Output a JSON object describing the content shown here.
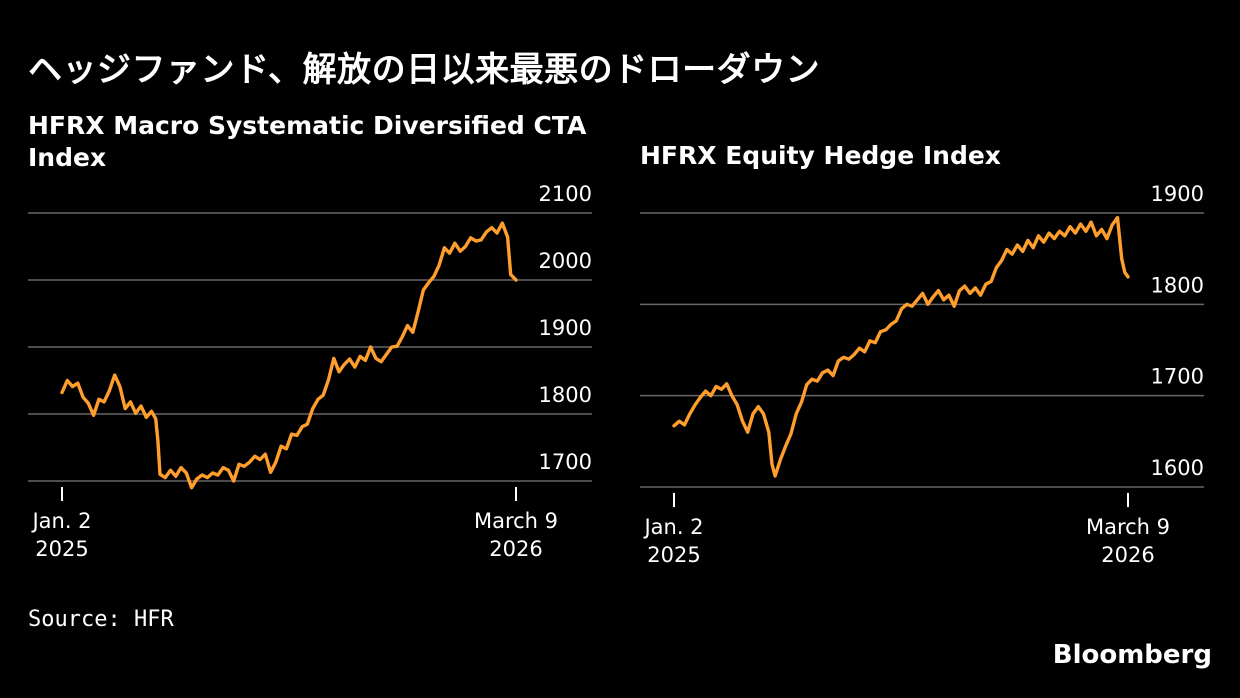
{
  "headline": "ヘッジファンド、解放の日以来最悪のドローダウン",
  "source": "Source: HFR",
  "brand": "Bloomberg",
  "chart_data": [
    {
      "type": "line",
      "title": "HFRX Macro Systematic Diversified CTA Index",
      "line_color": "#ff9e2c",
      "grid": true,
      "ylim": [
        1680,
        2100
      ],
      "y_ticks": [
        1700,
        1800,
        1900,
        2000,
        2100
      ],
      "x_tick_labels": [
        {
          "line1": "Jan. 2",
          "line2": "2025"
        },
        {
          "line1": "March 9",
          "line2": "2026"
        }
      ],
      "x_range": [
        "2025-01-02",
        "2026-03-09"
      ],
      "points": [
        [
          "2025-01-02",
          1832
        ],
        [
          "2025-01-07",
          1850
        ],
        [
          "2025-01-12",
          1841
        ],
        [
          "2025-01-17",
          1846
        ],
        [
          "2025-01-22",
          1825
        ],
        [
          "2025-01-27",
          1816
        ],
        [
          "2025-02-01",
          1798
        ],
        [
          "2025-02-06",
          1822
        ],
        [
          "2025-02-11",
          1818
        ],
        [
          "2025-02-16",
          1835
        ],
        [
          "2025-02-21",
          1858
        ],
        [
          "2025-02-26",
          1841
        ],
        [
          "2025-03-03",
          1808
        ],
        [
          "2025-03-08",
          1818
        ],
        [
          "2025-03-13",
          1801
        ],
        [
          "2025-03-18",
          1812
        ],
        [
          "2025-03-23",
          1795
        ],
        [
          "2025-03-28",
          1804
        ],
        [
          "2025-04-01",
          1793
        ],
        [
          "2025-04-03",
          1760
        ],
        [
          "2025-04-05",
          1710
        ],
        [
          "2025-04-10",
          1705
        ],
        [
          "2025-04-15",
          1716
        ],
        [
          "2025-04-20",
          1707
        ],
        [
          "2025-04-25",
          1720
        ],
        [
          "2025-04-30",
          1712
        ],
        [
          "2025-05-05",
          1690
        ],
        [
          "2025-05-10",
          1703
        ],
        [
          "2025-05-15",
          1709
        ],
        [
          "2025-05-20",
          1705
        ],
        [
          "2025-05-25",
          1712
        ],
        [
          "2025-05-30",
          1709
        ],
        [
          "2025-06-04",
          1720
        ],
        [
          "2025-06-09",
          1716
        ],
        [
          "2025-06-14",
          1700
        ],
        [
          "2025-06-19",
          1725
        ],
        [
          "2025-06-24",
          1722
        ],
        [
          "2025-06-29",
          1728
        ],
        [
          "2025-07-04",
          1737
        ],
        [
          "2025-07-09",
          1732
        ],
        [
          "2025-07-14",
          1740
        ],
        [
          "2025-07-19",
          1713
        ],
        [
          "2025-07-24",
          1728
        ],
        [
          "2025-07-29",
          1752
        ],
        [
          "2025-08-03",
          1748
        ],
        [
          "2025-08-08",
          1770
        ],
        [
          "2025-08-13",
          1768
        ],
        [
          "2025-08-18",
          1781
        ],
        [
          "2025-08-23",
          1785
        ],
        [
          "2025-08-28",
          1808
        ],
        [
          "2025-09-02",
          1822
        ],
        [
          "2025-09-07",
          1828
        ],
        [
          "2025-09-12",
          1851
        ],
        [
          "2025-09-17",
          1883
        ],
        [
          "2025-09-22",
          1863
        ],
        [
          "2025-09-27",
          1874
        ],
        [
          "2025-10-02",
          1882
        ],
        [
          "2025-10-07",
          1870
        ],
        [
          "2025-10-12",
          1886
        ],
        [
          "2025-10-17",
          1880
        ],
        [
          "2025-10-22",
          1900
        ],
        [
          "2025-10-27",
          1883
        ],
        [
          "2025-11-01",
          1878
        ],
        [
          "2025-11-06",
          1889
        ],
        [
          "2025-11-11",
          1900
        ],
        [
          "2025-11-16",
          1901
        ],
        [
          "2025-11-21",
          1915
        ],
        [
          "2025-11-26",
          1932
        ],
        [
          "2025-12-01",
          1922
        ],
        [
          "2025-12-06",
          1952
        ],
        [
          "2025-12-11",
          1985
        ],
        [
          "2025-12-16",
          1996
        ],
        [
          "2025-12-21",
          2005
        ],
        [
          "2025-12-26",
          2022
        ],
        [
          "2025-12-31",
          2048
        ],
        [
          "2026-01-05",
          2040
        ],
        [
          "2026-01-10",
          2055
        ],
        [
          "2026-01-15",
          2043
        ],
        [
          "2026-01-20",
          2050
        ],
        [
          "2026-01-25",
          2063
        ],
        [
          "2026-01-30",
          2058
        ],
        [
          "2026-02-04",
          2060
        ],
        [
          "2026-02-09",
          2072
        ],
        [
          "2026-02-14",
          2078
        ],
        [
          "2026-02-19",
          2070
        ],
        [
          "2026-02-24",
          2085
        ],
        [
          "2026-03-01",
          2064
        ],
        [
          "2026-03-04",
          2008
        ],
        [
          "2026-03-09",
          2000
        ]
      ]
    },
    {
      "type": "line",
      "title": "HFRX Equity Hedge Index",
      "line_color": "#ff9e2c",
      "grid": true,
      "ylim": [
        1575,
        1905
      ],
      "y_ticks": [
        1600,
        1700,
        1800,
        1900
      ],
      "x_tick_labels": [
        {
          "line1": "Jan. 2",
          "line2": "2025"
        },
        {
          "line1": "March 9",
          "line2": "2026"
        }
      ],
      "x_range": [
        "2025-01-02",
        "2026-03-09"
      ],
      "points": [
        [
          "2025-01-02",
          1667
        ],
        [
          "2025-01-07",
          1672
        ],
        [
          "2025-01-12",
          1668
        ],
        [
          "2025-01-17",
          1680
        ],
        [
          "2025-01-22",
          1690
        ],
        [
          "2025-01-27",
          1698
        ],
        [
          "2025-02-01",
          1705
        ],
        [
          "2025-02-06",
          1700
        ],
        [
          "2025-02-11",
          1710
        ],
        [
          "2025-02-16",
          1707
        ],
        [
          "2025-02-21",
          1713
        ],
        [
          "2025-02-26",
          1700
        ],
        [
          "2025-03-03",
          1690
        ],
        [
          "2025-03-08",
          1672
        ],
        [
          "2025-03-13",
          1660
        ],
        [
          "2025-03-18",
          1680
        ],
        [
          "2025-03-23",
          1688
        ],
        [
          "2025-03-28",
          1680
        ],
        [
          "2025-04-02",
          1660
        ],
        [
          "2025-04-05",
          1625
        ],
        [
          "2025-04-08",
          1612
        ],
        [
          "2025-04-13",
          1630
        ],
        [
          "2025-04-18",
          1645
        ],
        [
          "2025-04-23",
          1658
        ],
        [
          "2025-04-28",
          1680
        ],
        [
          "2025-05-03",
          1693
        ],
        [
          "2025-05-08",
          1712
        ],
        [
          "2025-05-13",
          1718
        ],
        [
          "2025-05-18",
          1716
        ],
        [
          "2025-05-23",
          1725
        ],
        [
          "2025-05-28",
          1728
        ],
        [
          "2025-06-02",
          1722
        ],
        [
          "2025-06-07",
          1738
        ],
        [
          "2025-06-12",
          1742
        ],
        [
          "2025-06-17",
          1740
        ],
        [
          "2025-06-22",
          1745
        ],
        [
          "2025-06-27",
          1752
        ],
        [
          "2025-07-02",
          1748
        ],
        [
          "2025-07-07",
          1760
        ],
        [
          "2025-07-12",
          1758
        ],
        [
          "2025-07-17",
          1770
        ],
        [
          "2025-07-22",
          1772
        ],
        [
          "2025-07-27",
          1778
        ],
        [
          "2025-08-01",
          1782
        ],
        [
          "2025-08-06",
          1795
        ],
        [
          "2025-08-11",
          1800
        ],
        [
          "2025-08-16",
          1798
        ],
        [
          "2025-08-21",
          1805
        ],
        [
          "2025-08-26",
          1812
        ],
        [
          "2025-08-31",
          1800
        ],
        [
          "2025-09-05",
          1808
        ],
        [
          "2025-09-10",
          1815
        ],
        [
          "2025-09-15",
          1805
        ],
        [
          "2025-09-20",
          1810
        ],
        [
          "2025-09-25",
          1798
        ],
        [
          "2025-09-30",
          1815
        ],
        [
          "2025-10-05",
          1820
        ],
        [
          "2025-10-10",
          1812
        ],
        [
          "2025-10-15",
          1818
        ],
        [
          "2025-10-20",
          1810
        ],
        [
          "2025-10-25",
          1822
        ],
        [
          "2025-10-30",
          1825
        ],
        [
          "2025-11-04",
          1840
        ],
        [
          "2025-11-09",
          1848
        ],
        [
          "2025-11-14",
          1860
        ],
        [
          "2025-11-19",
          1855
        ],
        [
          "2025-11-24",
          1865
        ],
        [
          "2025-11-29",
          1858
        ],
        [
          "2025-12-04",
          1870
        ],
        [
          "2025-12-09",
          1862
        ],
        [
          "2025-12-14",
          1875
        ],
        [
          "2025-12-19",
          1868
        ],
        [
          "2025-12-24",
          1878
        ],
        [
          "2025-12-29",
          1872
        ],
        [
          "2026-01-03",
          1880
        ],
        [
          "2026-01-08",
          1875
        ],
        [
          "2026-01-13",
          1885
        ],
        [
          "2026-01-18",
          1878
        ],
        [
          "2026-01-23",
          1888
        ],
        [
          "2026-01-28",
          1880
        ],
        [
          "2026-02-02",
          1890
        ],
        [
          "2026-02-07",
          1875
        ],
        [
          "2026-02-12",
          1882
        ],
        [
          "2026-02-17",
          1872
        ],
        [
          "2026-02-22",
          1887
        ],
        [
          "2026-02-27",
          1895
        ],
        [
          "2026-03-03",
          1850
        ],
        [
          "2026-03-06",
          1835
        ],
        [
          "2026-03-09",
          1830
        ]
      ]
    }
  ]
}
